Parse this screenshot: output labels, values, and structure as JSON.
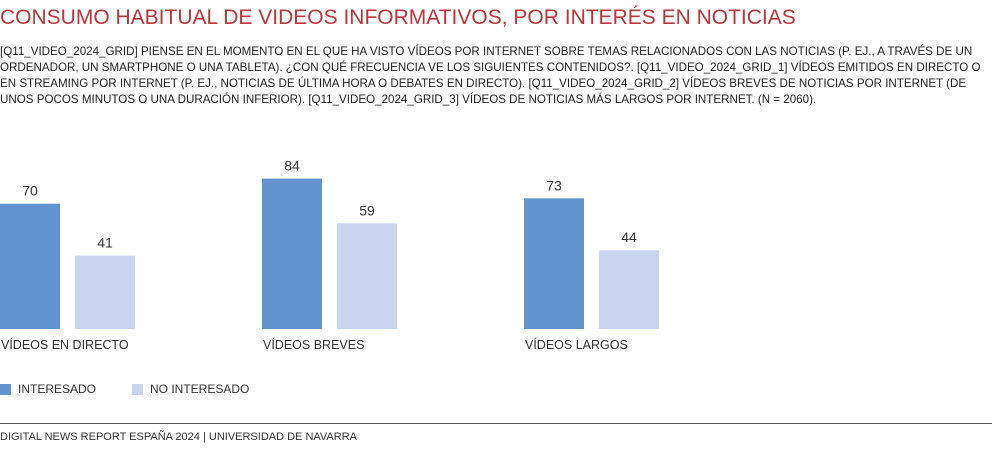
{
  "title": "CONSUMO HABITUAL DE VIDEOS INFORMATIVOS, POR INTERÉS EN NOTICIAS",
  "subtitle": "[Q11_VIDEO_2024_GRID] PIENSE EN EL MOMENTO EN EL QUE HA VISTO VÍDEOS POR INTERNET SOBRE TEMAS RELACIONADOS CON LAS NOTICIAS (P. EJ., A TRAVÉS DE UN ORDENADOR, UN SMARTPHONE O UNA TABLETA). ¿CON QUÉ FRECUENCIA VE LOS SIGUIENTES CONTENIDOS?. [Q11_VIDEO_2024_GRID_1] VÍDEOS EMITIDOS EN DIRECTO O EN STREAMING POR INTERNET (P. EJ., NOTICIAS DE ÚLTIMA HORA O DEBATES EN DIRECTO). [Q11_VIDEO_2024_GRID_2] VÍDEOS BREVES DE NOTICIAS POR INTERNET (DE UNOS POCOS MINUTOS O UNA DURACIÓN INFERIOR). [Q11_VIDEO_2024_GRID_3] VÍDEOS DE NOTICIAS MÁS LARGOS POR INTERNET. (N = 2060).",
  "footer": "DIGITAL NEWS REPORT ESPAÑA 2024 | UNIVERSIDAD DE NAVARRA",
  "colors": {
    "title": "#c0343c",
    "interesado": "#6294cf",
    "no_interesado": "#c9d5ee"
  },
  "chart_data": {
    "type": "bar",
    "categories": [
      "VÍDEOS EN DIRECTO",
      "VÍDEOS BREVES",
      "VÍDEOS LARGOS"
    ],
    "series": [
      {
        "name": "INTERESADO",
        "values": [
          70,
          84,
          73
        ],
        "color": "#6294cf"
      },
      {
        "name": "NO INTERESADO",
        "values": [
          41,
          59,
          44
        ],
        "color": "#c9d5ee"
      }
    ],
    "ylim": [
      0,
      100
    ],
    "grid": false,
    "legend_position": "bottom-left",
    "data_labels": true
  }
}
